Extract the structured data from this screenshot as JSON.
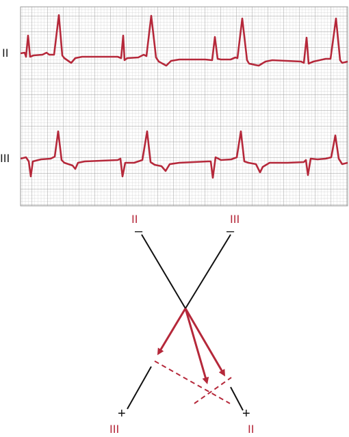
{
  "ecg": {
    "rows": [
      {
        "lead": "II"
      },
      {
        "lead": "III"
      }
    ]
  },
  "axis_diagram": {
    "lead_ii": {
      "label_top": "II",
      "label_bottom": "II",
      "neg_sign": "–",
      "pos_sign": "+"
    },
    "lead_iii": {
      "label_top": "III",
      "label_bottom": "III",
      "neg_sign": "–",
      "pos_sign": "+"
    }
  },
  "colors": {
    "trace": "#b5283a",
    "grid_minor": "#c8c8c8",
    "grid_major": "#9a9a9a",
    "line": "#111111"
  }
}
